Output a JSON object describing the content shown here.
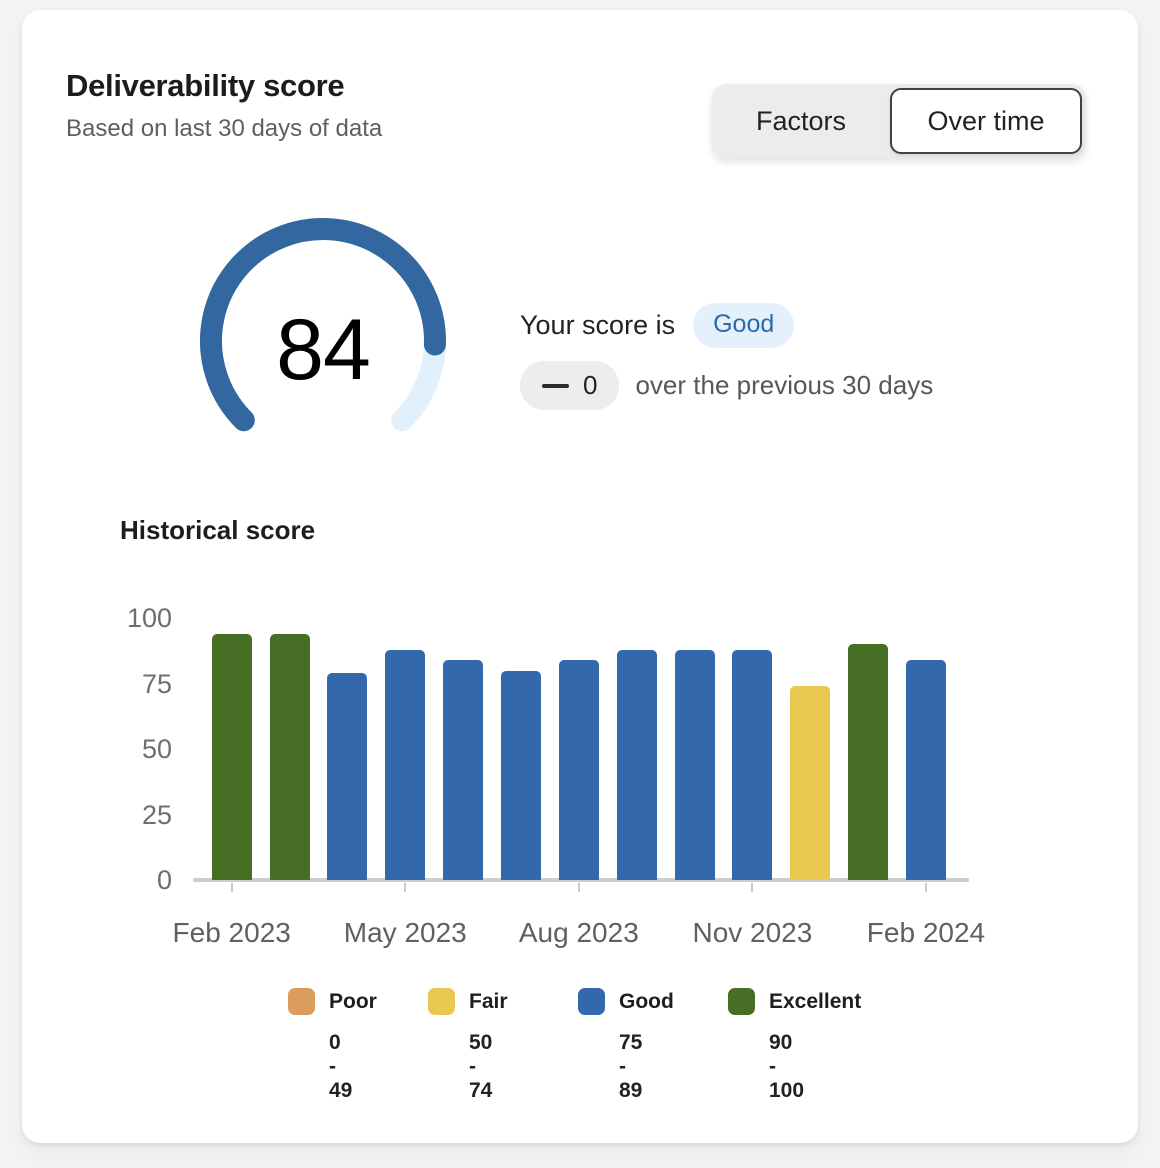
{
  "page": {
    "background": "#f3f4f6"
  },
  "card": {
    "title": "Deliverability score",
    "subtitle": "Based on last 30 days of data"
  },
  "toggle": {
    "factors_label": "Factors",
    "over_time_label": "Over time",
    "selected": "Over time"
  },
  "gauge": {
    "score": "84",
    "max": 100,
    "fill_color": "#33679f",
    "track_color": "#e2f0fb",
    "score_label_prefix": "Your score is",
    "rating": "Good",
    "rating_badge_bg": "#e4f1fc",
    "rating_badge_text_color": "#2c6bab",
    "delta_value": "0",
    "delta_caption": "over the previous 30 days"
  },
  "historical": {
    "heading": "Historical score"
  },
  "chart_data": {
    "type": "bar",
    "title": "Historical score",
    "values": [
      94,
      94,
      79,
      88,
      84,
      80,
      84,
      88,
      88,
      88,
      74,
      90,
      84
    ],
    "ratings": [
      "excellent",
      "excellent",
      "good",
      "good",
      "good",
      "good",
      "good",
      "good",
      "good",
      "good",
      "fair",
      "excellent",
      "good"
    ],
    "x_tick_labels": [
      "Feb 2023",
      "May 2023",
      "Aug 2023",
      "Nov 2023",
      "Feb 2024"
    ],
    "x_tick_bar_indexes": [
      0,
      3,
      6,
      9,
      12
    ],
    "y_ticks": [
      0,
      25,
      50,
      75,
      100
    ],
    "ylim": [
      0,
      100
    ],
    "grid": false,
    "legend_position": "bottom",
    "colors": {
      "poor": "#dd9c5f",
      "fair": "#e8c84f",
      "good": "#3368ad",
      "excellent": "#476e25"
    }
  },
  "legend": {
    "items": [
      {
        "key": "poor",
        "label": "Poor",
        "range": "0 - 49",
        "color": "#dd9c5f"
      },
      {
        "key": "fair",
        "label": "Fair",
        "range": "50 - 74",
        "color": "#e8c84f"
      },
      {
        "key": "good",
        "label": "Good",
        "range": "75 - 89",
        "color": "#3368ad"
      },
      {
        "key": "excellent",
        "label": "Excellent",
        "range": "90 - 100",
        "color": "#476e25"
      }
    ]
  }
}
